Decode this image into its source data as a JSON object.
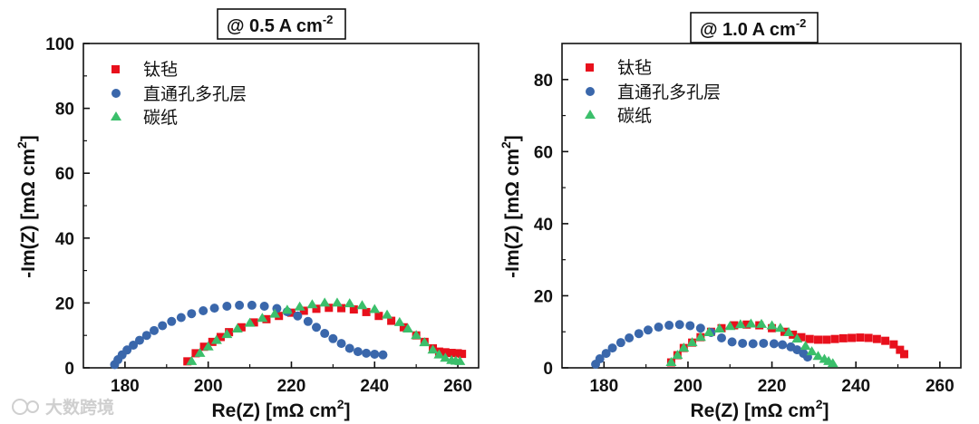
{
  "chart_data": [
    {
      "type": "scatter",
      "title": "@ 0.5 A cm",
      "title_sup": "-2",
      "xlabel": "Re(Z) [mΩ cm",
      "xlabel_sup": "2",
      "xlabel_end": "]",
      "ylabel": "-Im(Z) [mΩ cm",
      "ylabel_sup": "2",
      "ylabel_end": "]",
      "xlim": [
        170,
        265
      ],
      "ylim": [
        0,
        100
      ],
      "xticks": [
        "180",
        "200",
        "220",
        "240",
        "260"
      ],
      "yticks": [
        "0",
        "20",
        "40",
        "60",
        "80",
        "100"
      ],
      "legend": [
        "钛毡",
        "直通孔多孔层",
        "碳纸"
      ],
      "series": [
        {
          "name": "钛毡",
          "marker": "square",
          "color": "#e8101c",
          "x": [
            195,
            197,
            199,
            201,
            203,
            205,
            208,
            211,
            214,
            217,
            220,
            223,
            226,
            229,
            232,
            235,
            238,
            241,
            244,
            247,
            250,
            252,
            254,
            255.5,
            257,
            258.5,
            260,
            261
          ],
          "y": [
            2,
            4.5,
            6.5,
            8,
            9.5,
            11,
            12.5,
            14,
            15,
            16,
            17,
            17.6,
            18.2,
            18.5,
            18.4,
            18,
            17.2,
            16,
            14.5,
            12.5,
            10,
            8,
            6,
            5,
            4.8,
            4.6,
            4.5,
            4.3
          ]
        },
        {
          "name": "直通孔多孔层",
          "marker": "circle",
          "color": "#3a67ab",
          "x": [
            177.5,
            178.3,
            179.3,
            180.5,
            182,
            183.5,
            185.2,
            187,
            189,
            191.2,
            193.5,
            196,
            198.8,
            201.5,
            204.5,
            207.5,
            210.5,
            213.5,
            216.5,
            219,
            221.5,
            224,
            226,
            228,
            230,
            232,
            234,
            236,
            238,
            240,
            242
          ],
          "y": [
            1,
            2.5,
            4,
            5.5,
            7,
            8.5,
            10,
            11.5,
            13,
            14.3,
            15.5,
            16.7,
            17.6,
            18.4,
            19,
            19.3,
            19.3,
            19,
            18.3,
            17.3,
            16,
            14.3,
            12.5,
            10.6,
            9,
            7.5,
            6,
            5,
            4.5,
            4.2,
            4
          ]
        },
        {
          "name": "碳纸",
          "marker": "triangle",
          "color": "#3bbf6b",
          "x": [
            196,
            198,
            200,
            202,
            204.5,
            207,
            210,
            213,
            216,
            219,
            222,
            225,
            228,
            231,
            234,
            237,
            240,
            243,
            246,
            248,
            250,
            252,
            254,
            255.5,
            257,
            258.5,
            259.5,
            260.5
          ],
          "y": [
            2,
            4.5,
            6.5,
            8.5,
            10.3,
            12,
            13.8,
            15.3,
            16.6,
            17.8,
            18.8,
            19.5,
            20,
            20,
            19.8,
            19.2,
            18,
            16.3,
            14,
            12,
            10,
            7.8,
            5.5,
            4,
            3,
            2.3,
            2.1,
            2
          ]
        }
      ]
    },
    {
      "type": "scatter",
      "title": "@ 1.0 A cm",
      "title_sup": "-2",
      "xlabel": "Re(Z) [mΩ cm",
      "xlabel_sup": "2",
      "xlabel_end": "]",
      "ylabel": "-Im(Z) [mΩ cm",
      "ylabel_sup": "2",
      "ylabel_end": "]",
      "xlim": [
        170,
        265
      ],
      "ylim": [
        0,
        90
      ],
      "xticks": [
        "180",
        "200",
        "220",
        "240",
        "260"
      ],
      "yticks": [
        "0",
        "20",
        "40",
        "60",
        "80"
      ],
      "legend": [
        "钛毡",
        "直通孔多孔层",
        "碳纸"
      ],
      "series": [
        {
          "name": "钛毡",
          "marker": "square",
          "color": "#e8101c",
          "x": [
            196,
            197.5,
            199,
            201,
            203,
            205.5,
            208,
            211,
            214,
            217,
            220,
            223,
            225,
            227,
            229,
            231,
            233,
            235,
            237,
            239,
            241,
            243,
            245,
            247,
            249,
            250.5,
            251.5
          ],
          "y": [
            1.5,
            3.5,
            5.5,
            7,
            8.5,
            10,
            11,
            11.8,
            12,
            11.8,
            11,
            10,
            9.2,
            8.5,
            8,
            7.8,
            7.8,
            8,
            8.2,
            8.3,
            8.4,
            8.3,
            8,
            7.5,
            6.5,
            5,
            3.8
          ]
        },
        {
          "name": "直通孔多孔层",
          "marker": "circle",
          "color": "#3a67ab",
          "x": [
            178,
            179,
            180.5,
            182,
            184,
            186,
            188.3,
            190.5,
            193,
            195.5,
            198,
            200.5,
            203,
            205.5,
            208,
            210.5,
            213,
            215.5,
            218,
            220.5,
            222.5,
            224.5,
            226,
            227.5,
            228.5
          ],
          "y": [
            1,
            2.5,
            4,
            5.5,
            7,
            8.3,
            9.5,
            10.5,
            11.3,
            11.8,
            12,
            11.7,
            11,
            9.8,
            8.3,
            7.2,
            6.8,
            6.7,
            6.8,
            6.7,
            6.4,
            5.8,
            5,
            4,
            3
          ]
        },
        {
          "name": "碳纸",
          "marker": "triangle",
          "color": "#3bbf6b",
          "x": [
            196,
            197.5,
            199,
            201,
            203,
            205,
            207.5,
            210,
            212.5,
            215,
            217.5,
            220,
            222,
            224,
            226,
            228,
            229.5,
            231,
            232.5,
            233.5,
            234.5
          ],
          "y": [
            1.5,
            3.5,
            5.5,
            7,
            8.5,
            9.8,
            10.8,
            11.5,
            12,
            12.2,
            12.1,
            11.7,
            11,
            9.8,
            8,
            6,
            4.5,
            3.2,
            2.4,
            1.8,
            1.2
          ]
        }
      ]
    }
  ],
  "watermark": "大数跨境"
}
